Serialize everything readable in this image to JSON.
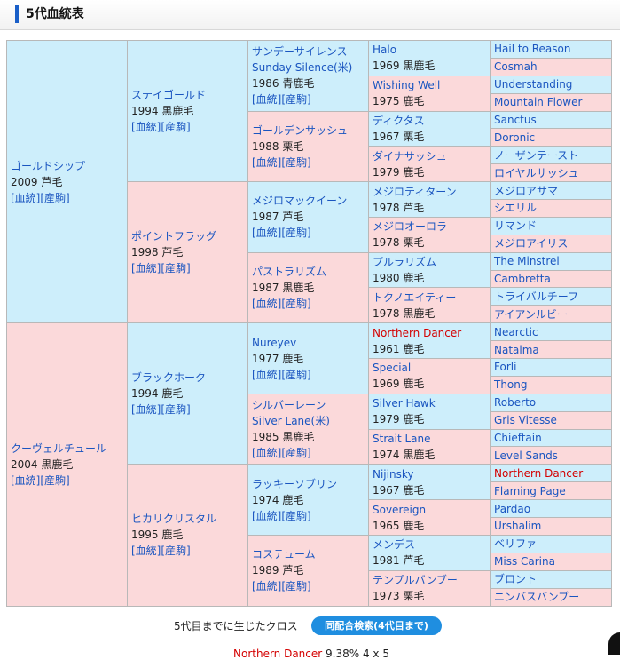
{
  "header": {
    "title": "5代血統表"
  },
  "links": {
    "pedigree": "[血統]",
    "offspring": "[産駒]"
  },
  "gen1": [
    {
      "name": "ゴールドシップ",
      "meta": "2009 芦毛"
    },
    {
      "name": "クーヴェルチュール",
      "meta": "2004 黒鹿毛"
    }
  ],
  "gen2": [
    {
      "name": "ステイゴールド",
      "meta": "1994 黒鹿毛"
    },
    {
      "name": "ポイントフラッグ",
      "meta": "1998 芦毛"
    },
    {
      "name": "ブラックホーク",
      "meta": "1994 鹿毛"
    },
    {
      "name": "ヒカリクリスタル",
      "meta": "1995 鹿毛"
    }
  ],
  "gen3": [
    {
      "name": "サンデーサイレンス",
      "name2": "Sunday Silence(米)",
      "meta": "1986 青鹿毛"
    },
    {
      "name": "ゴールデンサッシュ",
      "name2": "",
      "meta": "1988 栗毛"
    },
    {
      "name": "メジロマックイーン",
      "name2": "",
      "meta": "1987 芦毛"
    },
    {
      "name": "パストラリズム",
      "name2": "",
      "meta": "1987 黒鹿毛"
    },
    {
      "name": "Nureyev",
      "name2": "",
      "meta": "1977 鹿毛"
    },
    {
      "name": "シルバーレーン",
      "name2": "Silver Lane(米)",
      "meta": "1985 黒鹿毛"
    },
    {
      "name": "ラッキーソブリン",
      "name2": "",
      "meta": "1974 鹿毛"
    },
    {
      "name": "コステューム",
      "name2": "",
      "meta": "1989 芦毛"
    }
  ],
  "gen4": [
    {
      "name": "Halo",
      "meta": "1969 黒鹿毛"
    },
    {
      "name": "Wishing Well",
      "meta": "1975 鹿毛"
    },
    {
      "name": "ディクタス",
      "meta": "1967 栗毛"
    },
    {
      "name": "ダイナサッシュ",
      "meta": "1979 鹿毛"
    },
    {
      "name": "メジロティターン",
      "meta": "1978 芦毛"
    },
    {
      "name": "メジロオーロラ",
      "meta": "1978 栗毛"
    },
    {
      "name": "プルラリズム",
      "meta": "1980 鹿毛"
    },
    {
      "name": "トクノエイティー",
      "meta": "1978 黒鹿毛"
    },
    {
      "name": "Northern Dancer",
      "meta": "1961 鹿毛"
    },
    {
      "name": "Special",
      "meta": "1969 鹿毛"
    },
    {
      "name": "Silver Hawk",
      "meta": "1979 鹿毛"
    },
    {
      "name": "Strait Lane",
      "meta": "1974 黒鹿毛"
    },
    {
      "name": "Nijinsky",
      "meta": "1967 鹿毛"
    },
    {
      "name": "Sovereign",
      "meta": "1965 鹿毛"
    },
    {
      "name": "メンデス",
      "meta": "1981 芦毛"
    },
    {
      "name": "テンプルバンブー",
      "meta": "1973 栗毛"
    }
  ],
  "gen5": [
    "Hail to Reason",
    "Cosmah",
    "Understanding",
    "Mountain Flower",
    "Sanctus",
    "Doronic",
    "ノーザンテースト",
    "ロイヤルサッシュ",
    "メジロアサマ",
    "シエリル",
    "リマンド",
    "メジロアイリス",
    "The Minstrel",
    "Cambretta",
    "トライバルチーフ",
    "アイアンルビー",
    "Nearctic",
    "Natalma",
    "Forli",
    "Thong",
    "Roberto",
    "Gris Vitesse",
    "Chieftain",
    "Level Sands",
    "Northern Dancer",
    "Flaming Page",
    "Pardao",
    "Urshalim",
    "ベリファ",
    "Miss Carina",
    "ブロント",
    "ニンバスバンブー"
  ],
  "cross": {
    "label": "5代目までに生じたクロス",
    "button": "同配合検索(4代目まで)",
    "result_name": "Northern Dancer",
    "result_detail": "9.38%   4 x 5"
  },
  "colors": {
    "male": "#cdeefb",
    "female": "#fbd9da",
    "link": "#1a55c0",
    "cross_highlight": "#d40000",
    "button": "#1f8ee0"
  }
}
